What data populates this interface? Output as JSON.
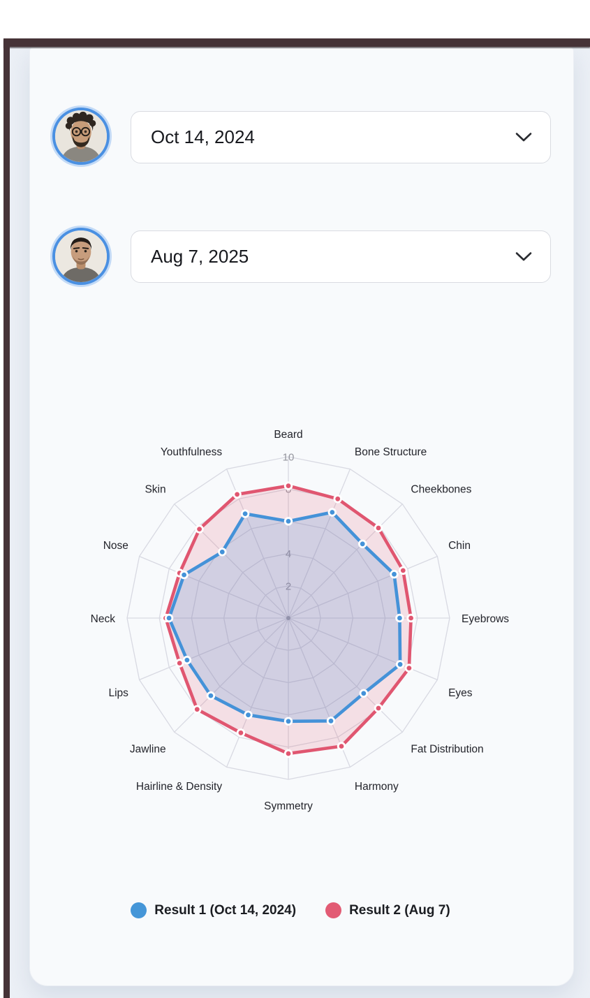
{
  "header": {
    "result1_title": "Result 1",
    "result2_title": "Result 2"
  },
  "selectors": {
    "result1": {
      "value": "Oct 14, 2024"
    },
    "result2": {
      "value": "Aug 7, 2025"
    }
  },
  "legend": [
    {
      "label": "Result 1 (Oct 14, 2024)",
      "color": "#4596d8"
    },
    {
      "label": "Result 2 (Aug 7)",
      "color": "#e25b74"
    }
  ],
  "colors": {
    "series1_line": "#4492d8",
    "series1_fill": "rgba(68,146,216,0.20)",
    "series2_line": "#e05670",
    "series2_fill": "rgba(224,86,112,0.16)",
    "grid": "#d8d9e2",
    "tick_text": "#95969e",
    "label_text": "#23242b",
    "frame": "#463337",
    "avatar_ring": "#4a90e2"
  },
  "chart_data": {
    "type": "radar",
    "categories": [
      "Beard",
      "Bone Structure",
      "Cheekbones",
      "Chin",
      "Eyebrows",
      "Eyes",
      "Fat Distribution",
      "Harmony",
      "Symmetry",
      "Hairline & Density",
      "Jawline",
      "Lips",
      "Neck",
      "Nose",
      "Skin",
      "Youthfulness"
    ],
    "series": [
      {
        "name": "Result 1 (Oct 14, 2024)",
        "values": [
          6.0,
          7.1,
          6.5,
          7.1,
          6.9,
          7.5,
          6.6,
          6.9,
          6.4,
          6.5,
          6.8,
          6.8,
          7.4,
          7.0,
          5.8,
          7.0
        ]
      },
      {
        "name": "Result 2 (Aug 7)",
        "values": [
          8.2,
          8.0,
          7.9,
          7.7,
          7.6,
          8.1,
          7.9,
          8.6,
          8.4,
          7.7,
          8.0,
          7.3,
          7.6,
          7.3,
          7.8,
          8.3
        ]
      }
    ],
    "rmax": 10,
    "ticks": [
      2,
      4,
      6,
      8,
      10
    ],
    "grid_shape": "polygon",
    "legend_position": "bottom"
  }
}
